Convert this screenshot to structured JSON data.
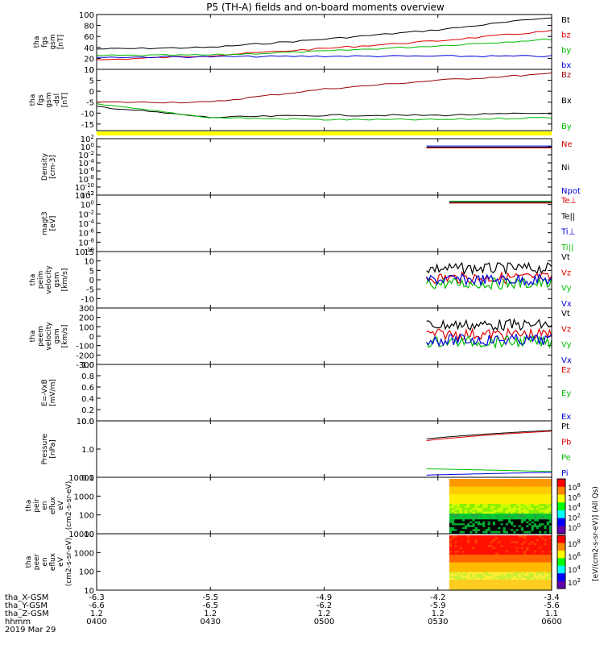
{
  "title": "P5 (TH-A) fields and on-board moments overview",
  "footer": {
    "row_labels": [
      "tha_X-GSM",
      "tha_Y-GSM",
      "tha_Z-GSM",
      "hhmm",
      "2019 Mar 29"
    ],
    "columns": [
      {
        "x": "-6.3",
        "y": "-6.6",
        "z": "1.2",
        "hhmm": "0400"
      },
      {
        "x": "-5.5",
        "y": "-6.5",
        "z": "1.2",
        "hhmm": "0430"
      },
      {
        "x": "-4.9",
        "y": "-6.2",
        "z": "1.2",
        "hhmm": "0500"
      },
      {
        "x": "-4.2",
        "y": "-5.9",
        "z": "1.2",
        "hhmm": "0530"
      },
      {
        "x": "-3.4",
        "y": "-5.6",
        "z": "1.1",
        "hhmm": "0600"
      }
    ]
  },
  "colorbar": {
    "label": "[eV/(cm2-s-sr-eV)] (All Qs)",
    "upper_ticks": [
      "10^8",
      "10^6",
      "10^4",
      "10^2",
      "10^0"
    ],
    "lower_ticks": [
      "10^8",
      "10^6",
      "10^4",
      "10^2"
    ]
  },
  "colors": {
    "black": "#000000",
    "red": "#dd0000",
    "green": "#00dd00",
    "blue": "#0000dd",
    "bar_yellow": "#ffff00",
    "darkred": "#990000"
  },
  "chart_data": [
    {
      "type": "line",
      "ylabel": "tha fgs gsm [nT]",
      "ylim": [
        0,
        100
      ],
      "yticks": [
        "0",
        "20",
        "40",
        "60",
        "80",
        "100"
      ],
      "series": [
        {
          "name": "Bt",
          "color": "#000000",
          "x": [
            0,
            0.5,
            1,
            1.5,
            2
          ],
          "values": [
            37,
            40,
            55,
            72,
            95
          ]
        },
        {
          "name": "bz",
          "color": "#dd0000",
          "x": [
            0,
            0.5,
            1,
            1.5,
            2
          ],
          "values": [
            17,
            25,
            38,
            52,
            70
          ]
        },
        {
          "name": "by",
          "color": "#00bb00",
          "x": [
            0,
            0.5,
            1,
            1.5,
            2
          ],
          "values": [
            25,
            26,
            33,
            43,
            55
          ]
        },
        {
          "name": "bx",
          "color": "#0000dd",
          "x": [
            0,
            0.5,
            1,
            1.5,
            2
          ],
          "values": [
            22,
            23,
            24,
            24,
            24
          ]
        }
      ]
    },
    {
      "type": "line",
      "ylabel": "tha fgs gsm -dsl [nT]",
      "ylim": [
        -18,
        10
      ],
      "yticks": [
        "-15",
        "-10",
        "-5",
        "0",
        "5",
        "10"
      ],
      "series": [
        {
          "name": "Bz",
          "color": "#990000",
          "x": [
            0,
            0.5,
            1,
            1.5,
            2
          ],
          "values": [
            -5,
            -5,
            1,
            5,
            8
          ]
        },
        {
          "name": "Bx",
          "color": "#000000",
          "x": [
            0,
            0.5,
            1,
            1.5,
            2
          ],
          "values": [
            -7,
            -12,
            -11,
            -11,
            -10
          ]
        },
        {
          "name": "By",
          "color": "#00bb00",
          "x": [
            0,
            0.5,
            1,
            1.5,
            2
          ],
          "values": [
            -6,
            -12,
            -13,
            -13,
            -12
          ]
        }
      ]
    },
    {
      "type": "line",
      "ylabel": "Density [cm-3]",
      "scale": "log",
      "yticks": [
        "10^-12",
        "10^-10",
        "10^-8",
        "10^-6",
        "10^-4",
        "10^-2",
        "10^0",
        "10^2"
      ],
      "series": [
        {
          "name": "Ne",
          "color": "#dd0000",
          "x": [
            1.45,
            2
          ],
          "values": [
            0.5,
            0.5
          ]
        },
        {
          "name": "Ni",
          "color": "#000000",
          "x": [
            1.45,
            2
          ],
          "values": [
            0.8,
            0.8
          ]
        },
        {
          "name": "Npot",
          "color": "#0000dd",
          "x": [
            1.45,
            2
          ],
          "values": [
            1.5,
            1.5
          ]
        }
      ]
    },
    {
      "type": "line",
      "ylabel": "magt3 [eV]",
      "scale": "log",
      "yticks": [
        "10^-10",
        "10^-8",
        "10^-6",
        "10^-4",
        "10^-2",
        "10^0",
        "10^2"
      ],
      "series": [
        {
          "name": "Te⊥",
          "color": "#dd0000",
          "x": [
            1.55,
            2
          ],
          "values": [
            2,
            2
          ]
        },
        {
          "name": "Te||",
          "color": "#000000",
          "x": [
            1.55,
            2
          ],
          "values": [
            3,
            3
          ]
        },
        {
          "name": "Ti⊥",
          "color": "#0000dd",
          "x": [
            1.55,
            2
          ],
          "values": [
            5,
            5
          ]
        },
        {
          "name": "Ti||",
          "color": "#00bb00",
          "x": [
            1.55,
            2
          ],
          "values": [
            5,
            5
          ]
        }
      ]
    },
    {
      "type": "line",
      "ylabel": "tha peim velocity gsm [km/s]",
      "ylim": [
        -15,
        15
      ],
      "yticks": [
        "-10",
        "-5",
        "0",
        "5",
        "10",
        "15"
      ],
      "series": [
        {
          "name": "Vt",
          "color": "#000000",
          "x": [
            1.45,
            2
          ],
          "values": [
            6,
            6
          ]
        },
        {
          "name": "Vz",
          "color": "#dd0000",
          "x": [
            1.45,
            2
          ],
          "values": [
            1,
            1
          ]
        },
        {
          "name": "Vy",
          "color": "#00bb00",
          "x": [
            1.45,
            2
          ],
          "values": [
            -2,
            -2
          ]
        },
        {
          "name": "Vx",
          "color": "#0000dd",
          "x": [
            1.45,
            2
          ],
          "values": [
            0,
            0
          ]
        }
      ]
    },
    {
      "type": "line",
      "ylabel": "tha peem velocity gsm [km/s]",
      "ylim": [
        -300,
        300
      ],
      "yticks": [
        "-300",
        "-200",
        "-100",
        "0",
        "100",
        "200",
        "300"
      ],
      "series": [
        {
          "name": "Vt",
          "color": "#000000",
          "x": [
            1.45,
            2
          ],
          "values": [
            120,
            120
          ]
        },
        {
          "name": "Vz",
          "color": "#dd0000",
          "x": [
            1.45,
            2
          ],
          "values": [
            20,
            20
          ]
        },
        {
          "name": "Vy",
          "color": "#00bb00",
          "x": [
            1.45,
            2
          ],
          "values": [
            -60,
            -60
          ]
        },
        {
          "name": "Vx",
          "color": "#0000dd",
          "x": [
            1.45,
            2
          ],
          "values": [
            -40,
            -40
          ]
        }
      ]
    },
    {
      "type": "line",
      "ylabel": "E=-VxB [mV/m]",
      "ylim": [
        0,
        1
      ],
      "yticks": [
        "0.0",
        "0.2",
        "0.4",
        "0.6",
        "0.8",
        "1.0"
      ],
      "series": [
        {
          "name": "Ez",
          "color": "#dd0000",
          "x": [],
          "values": []
        },
        {
          "name": "Ey",
          "color": "#00bb00",
          "x": [],
          "values": []
        },
        {
          "name": "Ex",
          "color": "#0000dd",
          "x": [],
          "values": []
        }
      ]
    },
    {
      "type": "line",
      "ylabel": "Pressure [nPa]",
      "scale": "log",
      "yticks": [
        "0.1",
        "1.0",
        "10.0"
      ],
      "series": [
        {
          "name": "Pt",
          "color": "#000000",
          "x": [
            1.45,
            2
          ],
          "values": [
            2.3,
            4.6
          ]
        },
        {
          "name": "Pb",
          "color": "#dd0000",
          "x": [
            1.45,
            2
          ],
          "values": [
            2.0,
            4.3
          ]
        },
        {
          "name": "Pe",
          "color": "#00bb00",
          "x": [
            1.45,
            2
          ],
          "values": [
            0.2,
            0.16
          ]
        },
        {
          "name": "Pi",
          "color": "#0000dd",
          "x": [
            1.45,
            2
          ],
          "values": [
            0.12,
            0.15
          ]
        }
      ]
    },
    {
      "type": "heatmap",
      "ylabel": "tha peir en eflux eV (cm2-s-sr-eV)",
      "scale": "log",
      "yticks": [
        "10",
        "100",
        "1000",
        "10000"
      ],
      "x_range": [
        1.55,
        2
      ]
    },
    {
      "type": "heatmap",
      "ylabel": "tha peer en eflux eV (cm2-s-sr-eV)",
      "scale": "log",
      "yticks": [
        "10",
        "100",
        "1000",
        "10000"
      ],
      "x_range": [
        1.55,
        2
      ]
    }
  ]
}
